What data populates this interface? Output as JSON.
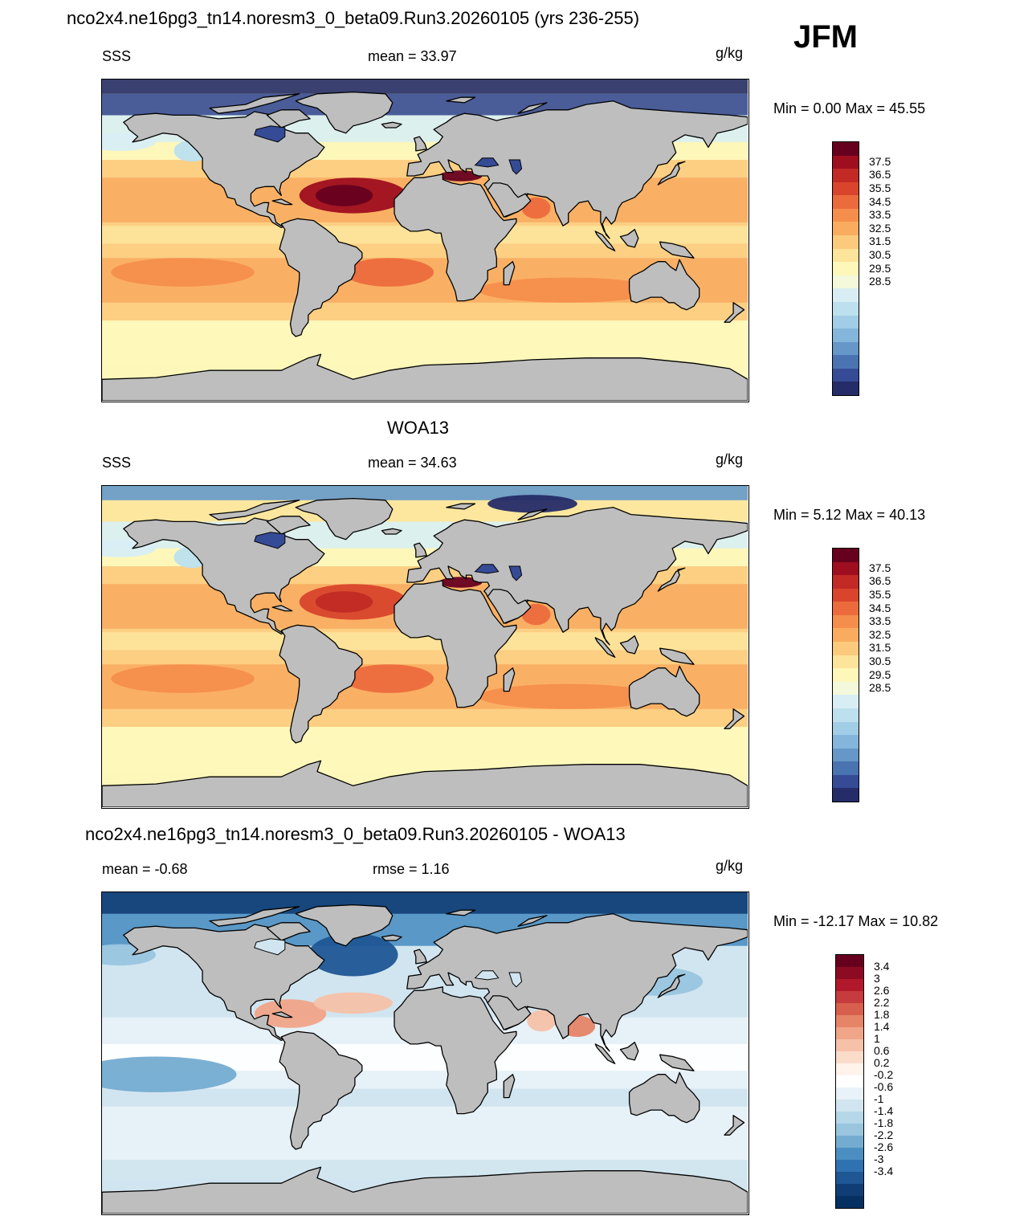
{
  "page": {
    "title": "nco2x4.ne16pg3_tn14.noresm3_0_beta09.Run3.20260105 (yrs 236-255)",
    "season": "JFM"
  },
  "panels": [
    {
      "title": "",
      "variable": "SSS",
      "stat_text": "mean =  33.97",
      "units": "g/kg",
      "minmax_text": "Min =   0.00 Max =  45.55",
      "field": "model"
    },
    {
      "title": "WOA13",
      "variable": "SSS",
      "stat_text": "mean =  34.63",
      "units": "g/kg",
      "minmax_text": "Min =   5.12 Max =  40.13",
      "field": "obs"
    },
    {
      "title": "nco2x4.ne16pg3_tn14.noresm3_0_beta09.Run3.20260105 - WOA13",
      "variable": "mean =  -0.68",
      "stat_text": "rmse =   1.16",
      "units": "g/kg",
      "minmax_text": "Min = -12.17 Max =  10.82",
      "field": "diff"
    }
  ],
  "colorbars": {
    "sss": {
      "labels": [
        "37.5",
        "36.5",
        "35.5",
        "34.5",
        "33.5",
        "32.5",
        "31.5",
        "30.5",
        "29.5",
        "28.5"
      ],
      "colors": [
        "#67001f",
        "#9e0e1f",
        "#c22a25",
        "#d8452c",
        "#ec6b3d",
        "#f58e4c",
        "#f9ac60",
        "#fcca7d",
        "#fde49b",
        "#fef7ba",
        "#f3f9da",
        "#d8eef4",
        "#bde0ee",
        "#a2cde6",
        "#84b5da",
        "#6597c8",
        "#4a73b2",
        "#364b96",
        "#252c68"
      ]
    },
    "diff": {
      "labels": [
        "3.4",
        "3",
        "2.6",
        "2.2",
        "1.8",
        "1.4",
        "1",
        "0.6",
        "0.2",
        "-0.2",
        "-0.6",
        "-1",
        "-1.4",
        "-1.8",
        "-2.2",
        "-2.6",
        "-3",
        "-3.4"
      ],
      "colors": [
        "#67001f",
        "#8d0a23",
        "#b2182b",
        "#c63b3e",
        "#d6604d",
        "#e58467",
        "#f0a488",
        "#f6c1a8",
        "#fbdccb",
        "#fff3ec",
        "#ffffff",
        "#e8f2f8",
        "#d1e5f0",
        "#b6d7e8",
        "#99c5df",
        "#74acd1",
        "#4b8fc2",
        "#2f72b1",
        "#1f5694",
        "#103e74",
        "#053061"
      ]
    }
  }
}
